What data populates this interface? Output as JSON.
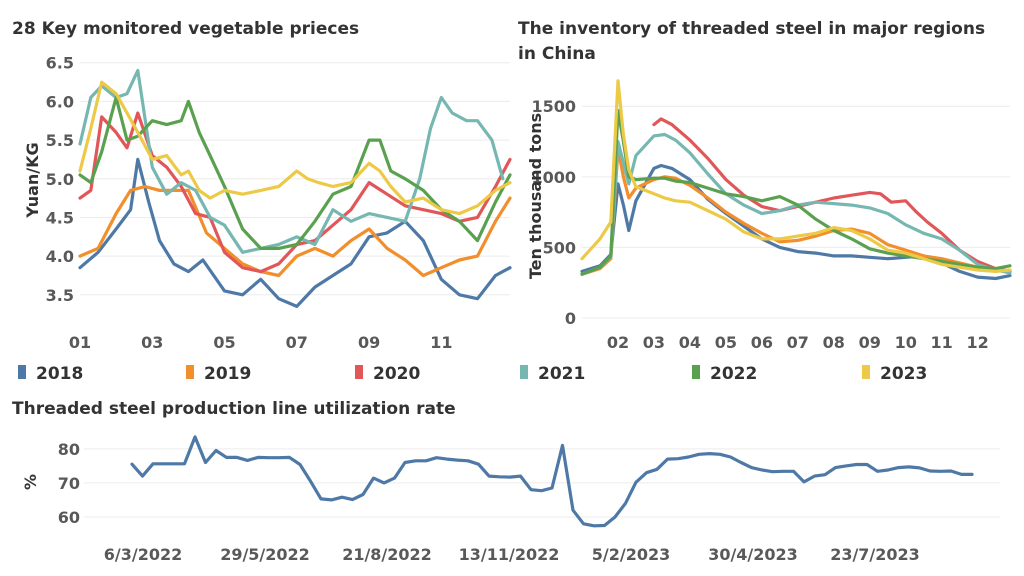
{
  "colors": {
    "2018": "#4e79a7",
    "2019": "#f28e2b",
    "2020": "#e15759",
    "2021": "#76b7b2",
    "2022": "#59a14f",
    "2023": "#edc948"
  },
  "legend": [
    "2018",
    "2019",
    "2020",
    "2021",
    "2022",
    "2023"
  ],
  "chart_data": [
    {
      "type": "line",
      "title": "28 Key monitored vegetable prieces",
      "ylabel": "Yuan/KG",
      "xlabel": "",
      "ylim": [
        3.2,
        6.6
      ],
      "yticks": [
        "3.5",
        "4.0",
        "4.5",
        "5.0",
        "5.5",
        "6.0",
        "6.5"
      ],
      "xlim": [
        1,
        12.9
      ],
      "xticks": [
        "01",
        "03",
        "05",
        "07",
        "09",
        "11"
      ],
      "series": [
        {
          "name": "2018",
          "x": [
            1,
            1.5,
            2,
            2.4,
            2.6,
            2.9,
            3.2,
            3.6,
            4,
            4.4,
            5,
            5.5,
            6,
            6.5,
            7,
            7.5,
            8,
            8.5,
            9,
            9.5,
            10,
            10.5,
            11,
            11.5,
            12,
            12.5,
            12.9
          ],
          "values": [
            3.85,
            4.05,
            4.35,
            4.6,
            5.25,
            4.7,
            4.2,
            3.9,
            3.8,
            3.95,
            3.55,
            3.5,
            3.7,
            3.45,
            3.35,
            3.6,
            3.75,
            3.9,
            4.25,
            4.3,
            4.45,
            4.2,
            3.7,
            3.5,
            3.45,
            3.75,
            3.85
          ]
        },
        {
          "name": "2019",
          "x": [
            1,
            1.5,
            2,
            2.4,
            2.8,
            3.2,
            3.6,
            4,
            4.5,
            5,
            5.5,
            6,
            6.5,
            7,
            7.5,
            8,
            8.5,
            9,
            9.5,
            10,
            10.5,
            11,
            11.5,
            12,
            12.5,
            12.9
          ],
          "values": [
            4.0,
            4.1,
            4.55,
            4.85,
            4.9,
            4.85,
            4.85,
            4.85,
            4.3,
            4.1,
            3.9,
            3.8,
            3.75,
            4.0,
            4.1,
            4.0,
            4.2,
            4.35,
            4.1,
            3.95,
            3.75,
            3.85,
            3.95,
            4.0,
            4.45,
            4.75
          ]
        },
        {
          "name": "2020",
          "x": [
            1,
            1.3,
            1.6,
            2,
            2.3,
            2.6,
            3,
            3.4,
            3.8,
            4.2,
            4.6,
            5,
            5.5,
            6,
            6.5,
            7,
            7.5,
            8,
            8.5,
            9,
            9.5,
            10,
            10.5,
            11,
            11.5,
            12,
            12.5,
            12.9
          ],
          "values": [
            4.75,
            4.85,
            5.8,
            5.6,
            5.4,
            5.85,
            5.3,
            5.15,
            4.9,
            4.55,
            4.5,
            4.05,
            3.85,
            3.8,
            3.9,
            4.15,
            4.2,
            4.4,
            4.6,
            4.95,
            4.8,
            4.65,
            4.6,
            4.55,
            4.45,
            4.5,
            4.9,
            5.25
          ]
        },
        {
          "name": "2021",
          "x": [
            1,
            1.3,
            1.6,
            2,
            2.3,
            2.6,
            3,
            3.4,
            3.8,
            4.2,
            4.6,
            5,
            5.5,
            6,
            6.5,
            7,
            7.5,
            8,
            8.5,
            9,
            9.5,
            10,
            10.4,
            10.7,
            11,
            11.3,
            11.7,
            12,
            12.4,
            12.7
          ],
          "values": [
            5.45,
            6.05,
            6.2,
            6.05,
            6.1,
            6.4,
            5.15,
            4.8,
            4.95,
            4.85,
            4.5,
            4.4,
            4.05,
            4.1,
            4.15,
            4.25,
            4.15,
            4.6,
            4.45,
            4.55,
            4.5,
            4.45,
            5.0,
            5.65,
            6.05,
            5.85,
            5.75,
            5.75,
            5.5,
            5.0
          ]
        },
        {
          "name": "2022",
          "x": [
            1,
            1.3,
            1.6,
            2,
            2.3,
            2.6,
            3,
            3.4,
            3.8,
            4,
            4.3,
            4.6,
            5,
            5.5,
            6,
            6.5,
            7,
            7.5,
            8,
            8.5,
            9,
            9.3,
            9.6,
            10,
            10.5,
            11,
            11.5,
            12,
            12.5,
            12.9
          ],
          "values": [
            5.05,
            4.95,
            5.35,
            6.05,
            5.5,
            5.55,
            5.75,
            5.7,
            5.75,
            6.0,
            5.6,
            5.3,
            4.9,
            4.35,
            4.1,
            4.1,
            4.15,
            4.45,
            4.8,
            4.9,
            5.5,
            5.5,
            5.1,
            5.0,
            4.85,
            4.6,
            4.45,
            4.2,
            4.7,
            5.05
          ]
        },
        {
          "name": "2023",
          "x": [
            1,
            1.3,
            1.6,
            2,
            2.3,
            2.6,
            3,
            3.4,
            3.8,
            4,
            4.3,
            4.6,
            5,
            5.5,
            6,
            6.5,
            7,
            7.3,
            7.6,
            8,
            8.5,
            9,
            9.3,
            9.6,
            10,
            10.5,
            11,
            11.5,
            12,
            12.5,
            12.9
          ],
          "values": [
            5.1,
            5.65,
            6.25,
            6.1,
            5.85,
            5.6,
            5.25,
            5.3,
            5.05,
            5.1,
            4.85,
            4.75,
            4.85,
            4.8,
            4.85,
            4.9,
            5.1,
            5.0,
            4.95,
            4.9,
            4.95,
            5.2,
            5.1,
            4.9,
            4.7,
            4.75,
            4.6,
            4.55,
            4.65,
            4.85,
            4.95
          ]
        }
      ]
    },
    {
      "type": "line",
      "title": "The inventory of threaded steel in major regions in China",
      "title_lines": [
        "The inventory of threaded steel in major regions",
        "in China"
      ],
      "ylabel": "Ten thousand tons",
      "xlabel": "",
      "ylim": [
        0,
        1700
      ],
      "yticks": [
        "0",
        "500",
        "1000",
        "1500"
      ],
      "xlim": [
        1,
        12.9
      ],
      "xticks": [
        "02",
        "03",
        "04",
        "05",
        "06",
        "07",
        "08",
        "09",
        "10",
        "11",
        "12"
      ],
      "series": [
        {
          "name": "2018",
          "x": [
            1,
            1.5,
            1.8,
            2.0,
            2.15,
            2.3,
            2.5,
            3.0,
            3.2,
            3.5,
            4,
            4.5,
            5,
            5.5,
            6,
            6.5,
            7,
            7.5,
            8,
            8.5,
            9,
            9.5,
            10,
            10.5,
            11,
            11.5,
            12,
            12.5,
            12.9
          ],
          "values": [
            330,
            370,
            450,
            950,
            800,
            620,
            830,
            1060,
            1080,
            1060,
            980,
            840,
            740,
            650,
            560,
            500,
            470,
            460,
            440,
            440,
            430,
            420,
            430,
            440,
            390,
            330,
            290,
            280,
            300
          ]
        },
        {
          "name": "2019",
          "x": [
            1,
            1.5,
            1.8,
            2.0,
            2.15,
            2.3,
            2.5,
            3.0,
            3.3,
            3.6,
            4,
            4.5,
            5,
            5.5,
            6,
            6.5,
            7,
            7.5,
            8,
            8.5,
            9,
            9.5,
            10,
            10.5,
            11,
            11.5,
            12,
            12.5,
            12.9
          ],
          "values": [
            310,
            350,
            420,
            1200,
            1000,
            850,
            920,
            980,
            1000,
            990,
            940,
            850,
            750,
            670,
            600,
            540,
            550,
            580,
            620,
            630,
            600,
            520,
            480,
            440,
            420,
            390,
            360,
            340,
            330
          ]
        },
        {
          "name": "2020",
          "x": [
            3.0,
            3.2,
            3.5,
            4,
            4.5,
            5,
            5.5,
            6,
            6.5,
            7,
            7.5,
            8,
            8.5,
            9,
            9.3,
            9.6,
            10,
            10.3,
            10.6,
            11,
            11.5,
            12,
            12.5,
            12.9
          ],
          "values": [
            1370,
            1410,
            1370,
            1260,
            1130,
            980,
            870,
            790,
            760,
            790,
            820,
            850,
            870,
            890,
            880,
            820,
            830,
            750,
            680,
            600,
            480,
            400,
            350,
            330
          ]
        },
        {
          "name": "2021",
          "x": [
            1,
            1.5,
            1.8,
            2.0,
            2.15,
            2.3,
            2.5,
            3.0,
            3.3,
            3.6,
            4,
            4.5,
            5,
            5.5,
            6,
            6.5,
            7,
            7.5,
            8,
            8.5,
            9,
            9.5,
            10,
            10.5,
            11,
            11.5,
            12,
            12.5,
            12.9
          ],
          "values": [
            310,
            360,
            430,
            1250,
            1100,
            950,
            1150,
            1290,
            1300,
            1260,
            1170,
            1020,
            880,
            800,
            740,
            760,
            800,
            820,
            810,
            800,
            780,
            740,
            660,
            600,
            560,
            480,
            380,
            340,
            320
          ]
        },
        {
          "name": "2022",
          "x": [
            1,
            1.5,
            1.8,
            2.0,
            2.15,
            2.3,
            2.5,
            3.0,
            3.3,
            3.6,
            4,
            4.5,
            5,
            5.5,
            6,
            6.5,
            7,
            7.5,
            8,
            8.5,
            9,
            9.5,
            10,
            10.5,
            11,
            11.5,
            12,
            12.5,
            12.9
          ],
          "values": [
            310,
            360,
            440,
            1470,
            1250,
            1000,
            980,
            990,
            990,
            970,
            960,
            920,
            880,
            860,
            830,
            860,
            800,
            700,
            620,
            560,
            490,
            460,
            440,
            420,
            400,
            380,
            360,
            350,
            370
          ]
        },
        {
          "name": "2023",
          "x": [
            1,
            1.5,
            1.8,
            2.0,
            2.15,
            2.3,
            2.5,
            3.0,
            3.3,
            3.6,
            4,
            4.5,
            5,
            5.5,
            6,
            6.5,
            7,
            7.5,
            8,
            8.5,
            9,
            9.5,
            10,
            10.5,
            11,
            11.5,
            12,
            12.5,
            12.9
          ],
          "values": [
            420,
            560,
            680,
            1680,
            1300,
            1050,
            930,
            880,
            850,
            830,
            820,
            760,
            700,
            610,
            560,
            560,
            580,
            600,
            640,
            620,
            560,
            480,
            460,
            420,
            380,
            360,
            340,
            330,
            340
          ]
        }
      ]
    },
    {
      "type": "line",
      "title": "Threaded steel production line utilization rate",
      "ylabel": "%",
      "xlabel": "",
      "ylim": [
        55,
        87
      ],
      "yticks": [
        "60",
        "70",
        "80"
      ],
      "xtick_labels": [
        "6/3/2022",
        "29/5/2022",
        "21/8/2022",
        "13/11/2022",
        "5/2/2023",
        "30/4/2023",
        "23/7/2023"
      ],
      "series": [
        {
          "name": "utilization",
          "values": [
            75.5,
            72,
            75.6,
            75.6,
            75.6,
            75.6,
            83.5,
            76,
            79.5,
            77.5,
            77.5,
            76.6,
            77.5,
            77.4,
            77.4,
            77.5,
            75.4,
            70.5,
            65.3,
            65,
            65.8,
            65.1,
            66.6,
            71.4,
            70,
            71.4,
            76,
            76.5,
            76.5,
            77.4,
            77,
            76.7,
            76.5,
            75.5,
            72,
            71.8,
            71.7,
            72,
            68,
            67.7,
            68.5,
            81,
            62,
            58,
            57.4,
            57.5,
            60,
            64,
            70.2,
            73,
            74,
            77,
            77.1,
            77.6,
            78.4,
            78.6,
            78.4,
            77.6,
            76,
            74.5,
            73.8,
            73.3,
            73.4,
            73.4,
            70.3,
            72,
            72.4,
            74.5,
            75,
            75.4,
            75.4,
            73.4,
            73.8,
            74.5,
            74.7,
            74.4,
            73.5,
            73.4,
            73.5,
            72.5,
            72.5
          ]
        }
      ]
    }
  ]
}
